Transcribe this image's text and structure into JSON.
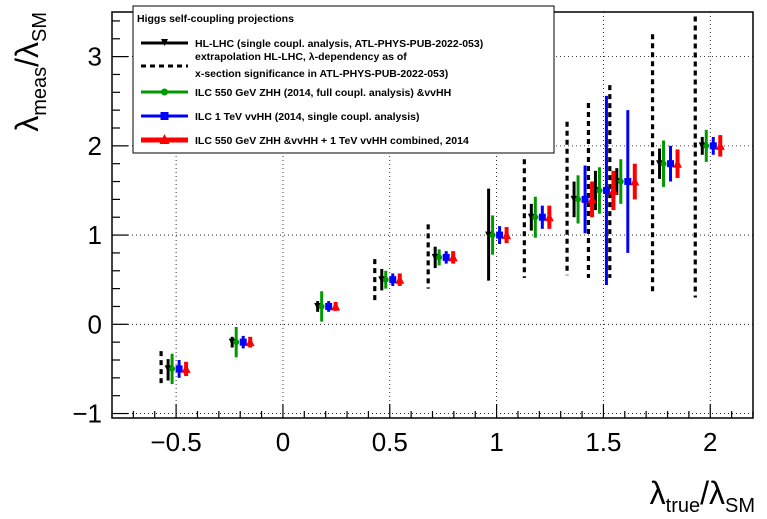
{
  "chart_data": {
    "type": "scatter",
    "title": "",
    "xlabel": {
      "main": "λ",
      "sub": "true",
      "sep": "/λ",
      "sub2": "SM"
    },
    "ylabel": {
      "main": "λ",
      "sub": "meas",
      "sep": "/λ",
      "sub2": "SM"
    },
    "xlim": [
      -0.8,
      2.2
    ],
    "ylim": [
      -1.05,
      3.5
    ],
    "x_ticks": [
      -0.5,
      0,
      0.5,
      1,
      1.5,
      2
    ],
    "x_tick_labels": [
      "−0.5",
      "0",
      "0.5",
      "1",
      "1.5",
      "2"
    ],
    "y_ticks": [
      -1,
      0,
      1,
      2,
      3
    ],
    "y_tick_labels": [
      "−1",
      "0",
      "1",
      "2",
      "3"
    ],
    "grid": true,
    "legend_title": "Higgs self-coupling projections",
    "legend_position": "top-left",
    "series": [
      {
        "name": "HL-LHC (single coupl. analysis, ATL-PHYS-PUB-2022-053)",
        "color": "#000000",
        "style": "solid",
        "points": [
          {
            "x": -0.5,
            "y": -0.5,
            "lo": -0.63,
            "hi": -0.39
          },
          {
            "x": -0.2,
            "y": -0.2,
            "lo": -0.26,
            "hi": -0.14
          },
          {
            "x": 0.2,
            "y": 0.2,
            "lo": 0.14,
            "hi": 0.26
          },
          {
            "x": 0.5,
            "y": 0.5,
            "lo": 0.38,
            "hi": 0.62
          },
          {
            "x": 0.75,
            "y": 0.75,
            "lo": 0.63,
            "hi": 0.87
          },
          {
            "x": 1.0,
            "y": 1.0,
            "lo": 0.49,
            "hi": 1.52
          },
          {
            "x": 1.2,
            "y": 1.2,
            "lo": 1.05,
            "hi": 1.35
          },
          {
            "x": 1.4,
            "y": 1.4,
            "lo": 1.2,
            "hi": 1.6
          },
          {
            "x": 1.5,
            "y": 1.5,
            "lo": 1.28,
            "hi": 1.72
          },
          {
            "x": 1.6,
            "y": 1.6,
            "lo": 1.45,
            "hi": 1.75
          },
          {
            "x": 1.8,
            "y": 1.8,
            "lo": 1.63,
            "hi": 1.97
          },
          {
            "x": 2.0,
            "y": 2.0,
            "lo": 1.9,
            "hi": 2.1
          }
        ]
      },
      {
        "name_line1": "extrapolation HL-LHC,  λ-dependency as of",
        "name_line2": "x-section significance in ATL-PHYS-PUB-2022-053)",
        "color": "#000000",
        "style": "dashed",
        "points": [
          {
            "x": -0.5,
            "y": -0.5,
            "lo": -0.68,
            "hi": -0.3
          },
          {
            "x": 0.5,
            "y": 0.5,
            "lo": 0.27,
            "hi": 0.73
          },
          {
            "x": 0.75,
            "y": 0.75,
            "lo": 0.4,
            "hi": 1.12
          },
          {
            "x": 1.2,
            "y": 1.2,
            "lo": 0.52,
            "hi": 1.85
          },
          {
            "x": 1.4,
            "y": 1.4,
            "lo": 0.55,
            "hi": 2.27
          },
          {
            "x": 1.5,
            "y": 1.5,
            "lo": 0.52,
            "hi": 2.48
          },
          {
            "x": 1.6,
            "y": 1.6,
            "lo": 0.52,
            "hi": 2.68
          },
          {
            "x": 1.8,
            "y": 1.8,
            "lo": 0.35,
            "hi": 3.25
          },
          {
            "x": 2.0,
            "y": 2.0,
            "lo": 0.3,
            "hi": 3.45
          }
        ]
      },
      {
        "name": "ILC 550 GeV ZHH (2014, full coupl. analysis) &vvHH",
        "color": "#009900",
        "style": "solid",
        "points": [
          {
            "x": -0.5,
            "y": -0.5,
            "lo": -0.67,
            "hi": -0.33
          },
          {
            "x": -0.2,
            "y": -0.2,
            "lo": -0.37,
            "hi": -0.03
          },
          {
            "x": 0.2,
            "y": 0.2,
            "lo": 0.03,
            "hi": 0.37
          },
          {
            "x": 0.5,
            "y": 0.5,
            "lo": 0.4,
            "hi": 0.6
          },
          {
            "x": 0.75,
            "y": 0.75,
            "lo": 0.66,
            "hi": 0.84
          },
          {
            "x": 1.0,
            "y": 1.0,
            "lo": 0.78,
            "hi": 1.22
          },
          {
            "x": 1.2,
            "y": 1.2,
            "lo": 0.97,
            "hi": 1.43
          },
          {
            "x": 1.4,
            "y": 1.4,
            "lo": 1.13,
            "hi": 1.67
          },
          {
            "x": 1.5,
            "y": 1.5,
            "lo": 1.24,
            "hi": 1.76
          },
          {
            "x": 1.6,
            "y": 1.6,
            "lo": 1.35,
            "hi": 1.85
          },
          {
            "x": 1.8,
            "y": 1.8,
            "lo": 1.54,
            "hi": 2.06
          },
          {
            "x": 2.0,
            "y": 2.0,
            "lo": 1.82,
            "hi": 2.18
          }
        ]
      },
      {
        "name": "ILC 1 TeV vvHH (2014, single coupl. analysis)",
        "color": "#0000ff",
        "style": "solid",
        "points": [
          {
            "x": -0.5,
            "y": -0.5,
            "lo": -0.6,
            "hi": -0.4
          },
          {
            "x": -0.2,
            "y": -0.2,
            "lo": -0.27,
            "hi": -0.13
          },
          {
            "x": 0.2,
            "y": 0.2,
            "lo": 0.14,
            "hi": 0.26
          },
          {
            "x": 0.5,
            "y": 0.5,
            "lo": 0.43,
            "hi": 0.57
          },
          {
            "x": 0.75,
            "y": 0.75,
            "lo": 0.68,
            "hi": 0.82
          },
          {
            "x": 1.0,
            "y": 1.0,
            "lo": 0.9,
            "hi": 1.1
          },
          {
            "x": 1.2,
            "y": 1.2,
            "lo": 1.07,
            "hi": 1.33
          },
          {
            "x": 1.4,
            "y": 1.4,
            "lo": 1.02,
            "hi": 1.78
          },
          {
            "x": 1.5,
            "y": 1.5,
            "lo": 0.44,
            "hi": 2.56
          },
          {
            "x": 1.6,
            "y": 1.6,
            "lo": 0.8,
            "hi": 2.4
          },
          {
            "x": 1.8,
            "y": 1.8,
            "lo": 1.6,
            "hi": 2.0
          },
          {
            "x": 2.0,
            "y": 2.0,
            "lo": 1.9,
            "hi": 2.1
          }
        ]
      },
      {
        "name": "ILC 550 GeV ZHH &vvHH + 1 TeV vvHH combined, 2014",
        "color": "#ff0000",
        "style": "solid",
        "points": [
          {
            "x": -0.5,
            "y": -0.5,
            "lo": -0.58,
            "hi": -0.42
          },
          {
            "x": -0.2,
            "y": -0.2,
            "lo": -0.26,
            "hi": -0.14
          },
          {
            "x": 0.2,
            "y": 0.2,
            "lo": 0.15,
            "hi": 0.25
          },
          {
            "x": 0.5,
            "y": 0.5,
            "lo": 0.43,
            "hi": 0.57
          },
          {
            "x": 0.75,
            "y": 0.75,
            "lo": 0.68,
            "hi": 0.82
          },
          {
            "x": 1.0,
            "y": 1.0,
            "lo": 0.91,
            "hi": 1.09
          },
          {
            "x": 1.2,
            "y": 1.2,
            "lo": 1.07,
            "hi": 1.33
          },
          {
            "x": 1.4,
            "y": 1.4,
            "lo": 1.2,
            "hi": 1.6
          },
          {
            "x": 1.5,
            "y": 1.5,
            "lo": 1.28,
            "hi": 1.72
          },
          {
            "x": 1.6,
            "y": 1.6,
            "lo": 1.4,
            "hi": 1.8
          },
          {
            "x": 1.8,
            "y": 1.8,
            "lo": 1.64,
            "hi": 1.96
          },
          {
            "x": 2.0,
            "y": 2.0,
            "lo": 1.88,
            "hi": 2.12
          }
        ]
      }
    ]
  }
}
